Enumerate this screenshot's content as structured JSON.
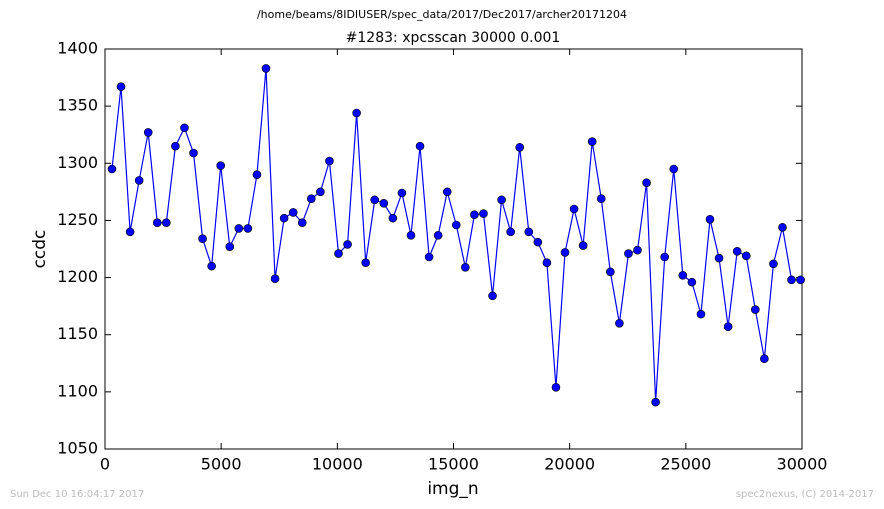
{
  "chart_data": {
    "type": "line",
    "suptitle": "/home/beams/8IDIUSER/spec_data/2017/Dec2017/archer20171204",
    "title": "#1283: xpcsscan 30000 0.001",
    "xlabel": "img_n",
    "ylabel": "ccdc",
    "footer_left": "Sun Dec 10 16:04:17 2017",
    "footer_right": "spec2nexus, (C) 2014-2017",
    "x": [
      300,
      690,
      1080,
      1470,
      1860,
      2250,
      2640,
      3030,
      3420,
      3810,
      4200,
      4590,
      4980,
      5370,
      5760,
      6150,
      6540,
      6930,
      7320,
      7710,
      8100,
      8490,
      8880,
      9270,
      9660,
      10050,
      10440,
      10830,
      11220,
      11610,
      12000,
      12390,
      12780,
      13170,
      13560,
      13950,
      14340,
      14730,
      15120,
      15510,
      15900,
      16290,
      16680,
      17070,
      17460,
      17850,
      18240,
      18630,
      19020,
      19410,
      19800,
      20190,
      20580,
      20970,
      21360,
      21750,
      22140,
      22530,
      22920,
      23310,
      23700,
      24090,
      24480,
      24870,
      25260,
      25650,
      26040,
      26430,
      26820,
      27210,
      27600,
      27990,
      28380,
      28770,
      29160,
      29550,
      29940
    ],
    "series": [
      {
        "name": "ccdc",
        "color": "#0000ff",
        "values": [
          1295,
          1367,
          1240,
          1285,
          1327,
          1248,
          1248,
          1315,
          1331,
          1309,
          1234,
          1210,
          1298,
          1227,
          1243,
          1243,
          1290,
          1383,
          1199,
          1252,
          1257,
          1248,
          1269,
          1275,
          1302,
          1221,
          1229,
          1344,
          1213,
          1268,
          1265,
          1252,
          1274,
          1237,
          1315,
          1218,
          1237,
          1275,
          1246,
          1209,
          1255,
          1256,
          1184,
          1268,
          1240,
          1314,
          1240,
          1231,
          1213,
          1104,
          1222,
          1260,
          1228,
          1319,
          1269,
          1205,
          1160,
          1221,
          1224,
          1283,
          1091,
          1218,
          1295,
          1202,
          1196,
          1168,
          1251,
          1217,
          1157,
          1223,
          1219,
          1172,
          1129,
          1212,
          1244,
          1198,
          1198
        ]
      }
    ],
    "xlim": [
      0,
      30000
    ],
    "xticks": [
      0,
      5000,
      10000,
      15000,
      20000,
      25000,
      30000
    ],
    "ylim": [
      1050,
      1400
    ],
    "yticks": [
      1050,
      1100,
      1150,
      1200,
      1250,
      1300,
      1350,
      1400
    ]
  }
}
